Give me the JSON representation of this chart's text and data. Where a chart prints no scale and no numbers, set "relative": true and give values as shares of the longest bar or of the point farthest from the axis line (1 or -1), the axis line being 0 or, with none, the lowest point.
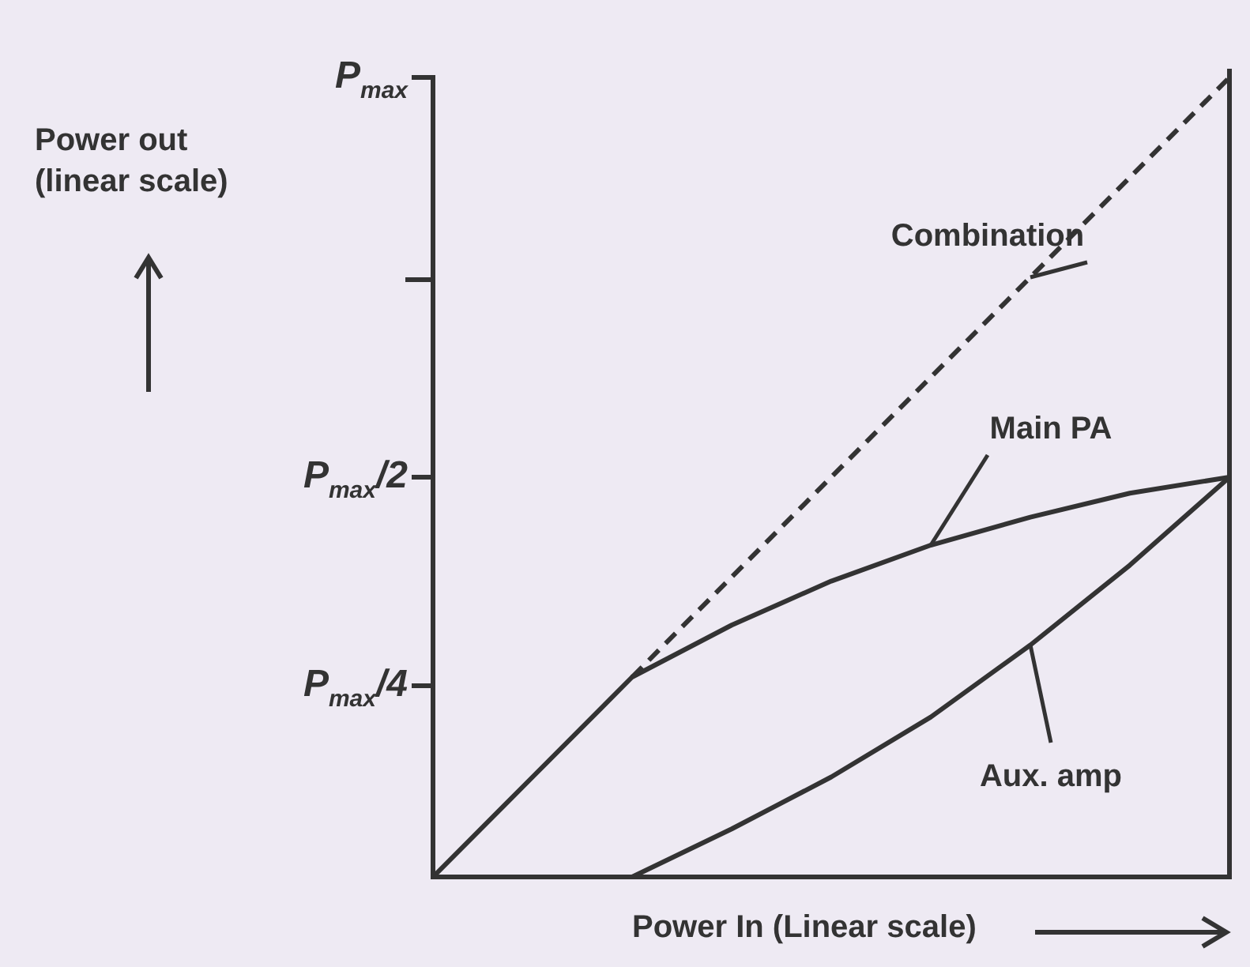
{
  "chart_data": {
    "type": "line",
    "xlabel": "Power In (Linear scale)",
    "relative": true,
    "grid": false,
    "legend": false,
    "marker": "none",
    "categories": [
      null,
      null,
      null,
      null,
      null,
      null,
      null,
      null,
      null
    ],
    "annotations": [
      "Power out (linear scale)",
      "P$_{max}$",
      "P$_{max}$/2",
      "P$_{max}$/4"
    ],
    "series": [
      {
        "name": "Combination",
        "color": "#333333",
        "line_style": "dashed",
        "values": [
          null,
          null,
          0.25,
          0.375,
          0.5,
          0.625,
          0.75,
          0.875,
          1
        ]
      },
      {
        "name": "Main PA",
        "color": "#333333",
        "line_style": "solid",
        "values": [
          0,
          0.125,
          0.25,
          0.315,
          0.37,
          0.415,
          0.45,
          0.48,
          0.5
        ]
      },
      {
        "name": "Aux. amp",
        "color": "#333333",
        "line_style": "solid",
        "values": [
          null,
          null,
          0,
          0.06,
          0.125,
          0.2,
          0.29,
          0.39,
          0.5
        ]
      }
    ]
  }
}
